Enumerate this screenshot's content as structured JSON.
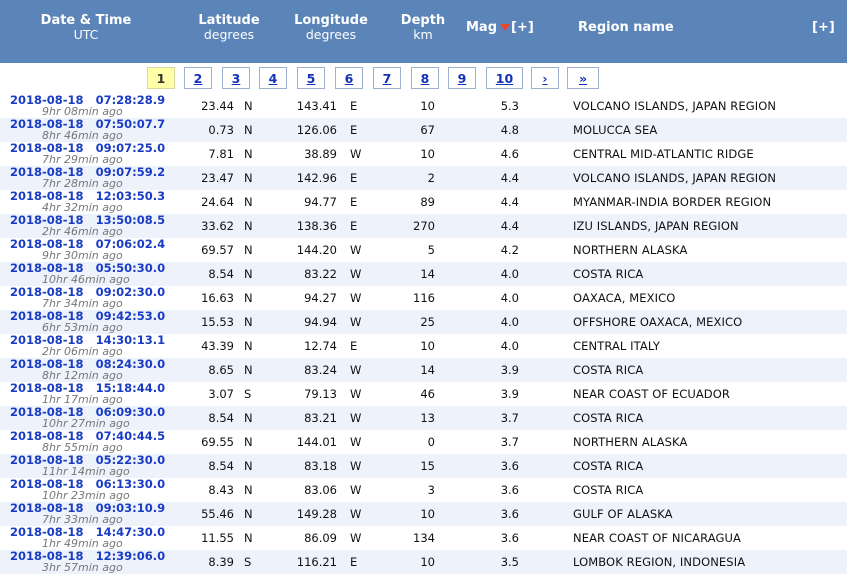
{
  "header": {
    "datetime_label": "Date & Time",
    "datetime_sub": "UTC",
    "latitude_label": "Latitude",
    "latitude_sub": "degrees",
    "longitude_label": "Longitude",
    "longitude_sub": "degrees",
    "depth_label": "Depth",
    "depth_sub": "km",
    "mag_label": "Mag",
    "mag_plus": "[+]",
    "region_label": "Region name",
    "right_plus": "[+]"
  },
  "pager": {
    "pages": [
      "1",
      "2",
      "3",
      "4",
      "5",
      "6",
      "7",
      "8",
      "9",
      "10"
    ],
    "current": "1",
    "next": "›",
    "last": "»"
  },
  "rows": [
    {
      "date": "2018-08-18   07:28:28.9",
      "ago": "9hr 08min ago",
      "lat": "23.44",
      "lat_dir": "N",
      "lon": "143.41",
      "lon_dir": "E",
      "depth": "10",
      "mag": "5.3",
      "region": "VOLCANO ISLANDS, JAPAN REGION"
    },
    {
      "date": "2018-08-18   07:50:07.7",
      "ago": "8hr 46min ago",
      "lat": "0.73",
      "lat_dir": "N",
      "lon": "126.06",
      "lon_dir": "E",
      "depth": "67",
      "mag": "4.8",
      "region": "MOLUCCA SEA"
    },
    {
      "date": "2018-08-18   09:07:25.0",
      "ago": "7hr 29min ago",
      "lat": "7.81",
      "lat_dir": "N",
      "lon": "38.89",
      "lon_dir": "W",
      "depth": "10",
      "mag": "4.6",
      "region": "CENTRAL MID-ATLANTIC RIDGE"
    },
    {
      "date": "2018-08-18   09:07:59.2",
      "ago": "7hr 28min ago",
      "lat": "23.47",
      "lat_dir": "N",
      "lon": "142.96",
      "lon_dir": "E",
      "depth": "2",
      "mag": "4.4",
      "region": "VOLCANO ISLANDS, JAPAN REGION"
    },
    {
      "date": "2018-08-18   12:03:50.3",
      "ago": "4hr 32min ago",
      "lat": "24.64",
      "lat_dir": "N",
      "lon": "94.77",
      "lon_dir": "E",
      "depth": "89",
      "mag": "4.4",
      "region": "MYANMAR-INDIA BORDER REGION"
    },
    {
      "date": "2018-08-18   13:50:08.5",
      "ago": "2hr 46min ago",
      "lat": "33.62",
      "lat_dir": "N",
      "lon": "138.36",
      "lon_dir": "E",
      "depth": "270",
      "mag": "4.4",
      "region": "IZU ISLANDS, JAPAN REGION"
    },
    {
      "date": "2018-08-18   07:06:02.4",
      "ago": "9hr 30min ago",
      "lat": "69.57",
      "lat_dir": "N",
      "lon": "144.20",
      "lon_dir": "W",
      "depth": "5",
      "mag": "4.2",
      "region": "NORTHERN ALASKA"
    },
    {
      "date": "2018-08-18   05:50:30.0",
      "ago": "10hr 46min ago",
      "lat": "8.54",
      "lat_dir": "N",
      "lon": "83.22",
      "lon_dir": "W",
      "depth": "14",
      "mag": "4.0",
      "region": "COSTA RICA"
    },
    {
      "date": "2018-08-18   09:02:30.0",
      "ago": "7hr 34min ago",
      "lat": "16.63",
      "lat_dir": "N",
      "lon": "94.27",
      "lon_dir": "W",
      "depth": "116",
      "mag": "4.0",
      "region": "OAXACA, MEXICO"
    },
    {
      "date": "2018-08-18   09:42:53.0",
      "ago": "6hr 53min ago",
      "lat": "15.53",
      "lat_dir": "N",
      "lon": "94.94",
      "lon_dir": "W",
      "depth": "25",
      "mag": "4.0",
      "region": "OFFSHORE OAXACA, MEXICO"
    },
    {
      "date": "2018-08-18   14:30:13.1",
      "ago": "2hr 06min ago",
      "lat": "43.39",
      "lat_dir": "N",
      "lon": "12.74",
      "lon_dir": "E",
      "depth": "10",
      "mag": "4.0",
      "region": "CENTRAL ITALY"
    },
    {
      "date": "2018-08-18   08:24:30.0",
      "ago": "8hr 12min ago",
      "lat": "8.65",
      "lat_dir": "N",
      "lon": "83.24",
      "lon_dir": "W",
      "depth": "14",
      "mag": "3.9",
      "region": "COSTA RICA"
    },
    {
      "date": "2018-08-18   15:18:44.0",
      "ago": "1hr 17min ago",
      "lat": "3.07",
      "lat_dir": "S",
      "lon": "79.13",
      "lon_dir": "W",
      "depth": "46",
      "mag": "3.9",
      "region": "NEAR COAST OF ECUADOR"
    },
    {
      "date": "2018-08-18   06:09:30.0",
      "ago": "10hr 27min ago",
      "lat": "8.54",
      "lat_dir": "N",
      "lon": "83.21",
      "lon_dir": "W",
      "depth": "13",
      "mag": "3.7",
      "region": "COSTA RICA"
    },
    {
      "date": "2018-08-18   07:40:44.5",
      "ago": "8hr 55min ago",
      "lat": "69.55",
      "lat_dir": "N",
      "lon": "144.01",
      "lon_dir": "W",
      "depth": "0",
      "mag": "3.7",
      "region": "NORTHERN ALASKA"
    },
    {
      "date": "2018-08-18   05:22:30.0",
      "ago": "11hr 14min ago",
      "lat": "8.54",
      "lat_dir": "N",
      "lon": "83.18",
      "lon_dir": "W",
      "depth": "15",
      "mag": "3.6",
      "region": "COSTA RICA"
    },
    {
      "date": "2018-08-18   06:13:30.0",
      "ago": "10hr 23min ago",
      "lat": "8.43",
      "lat_dir": "N",
      "lon": "83.06",
      "lon_dir": "W",
      "depth": "3",
      "mag": "3.6",
      "region": "COSTA RICA"
    },
    {
      "date": "2018-08-18   09:03:10.9",
      "ago": "7hr 33min ago",
      "lat": "55.46",
      "lat_dir": "N",
      "lon": "149.28",
      "lon_dir": "W",
      "depth": "10",
      "mag": "3.6",
      "region": "GULF OF ALASKA"
    },
    {
      "date": "2018-08-18   14:47:30.0",
      "ago": "1hr 49min ago",
      "lat": "11.55",
      "lat_dir": "N",
      "lon": "86.09",
      "lon_dir": "W",
      "depth": "134",
      "mag": "3.6",
      "region": "NEAR COAST OF NICARAGUA"
    },
    {
      "date": "2018-08-18   12:39:06.0",
      "ago": "3hr 57min ago",
      "lat": "8.39",
      "lat_dir": "S",
      "lon": "116.21",
      "lon_dir": "E",
      "depth": "10",
      "mag": "3.5",
      "region": "LOMBOK REGION, INDONESIA"
    }
  ]
}
